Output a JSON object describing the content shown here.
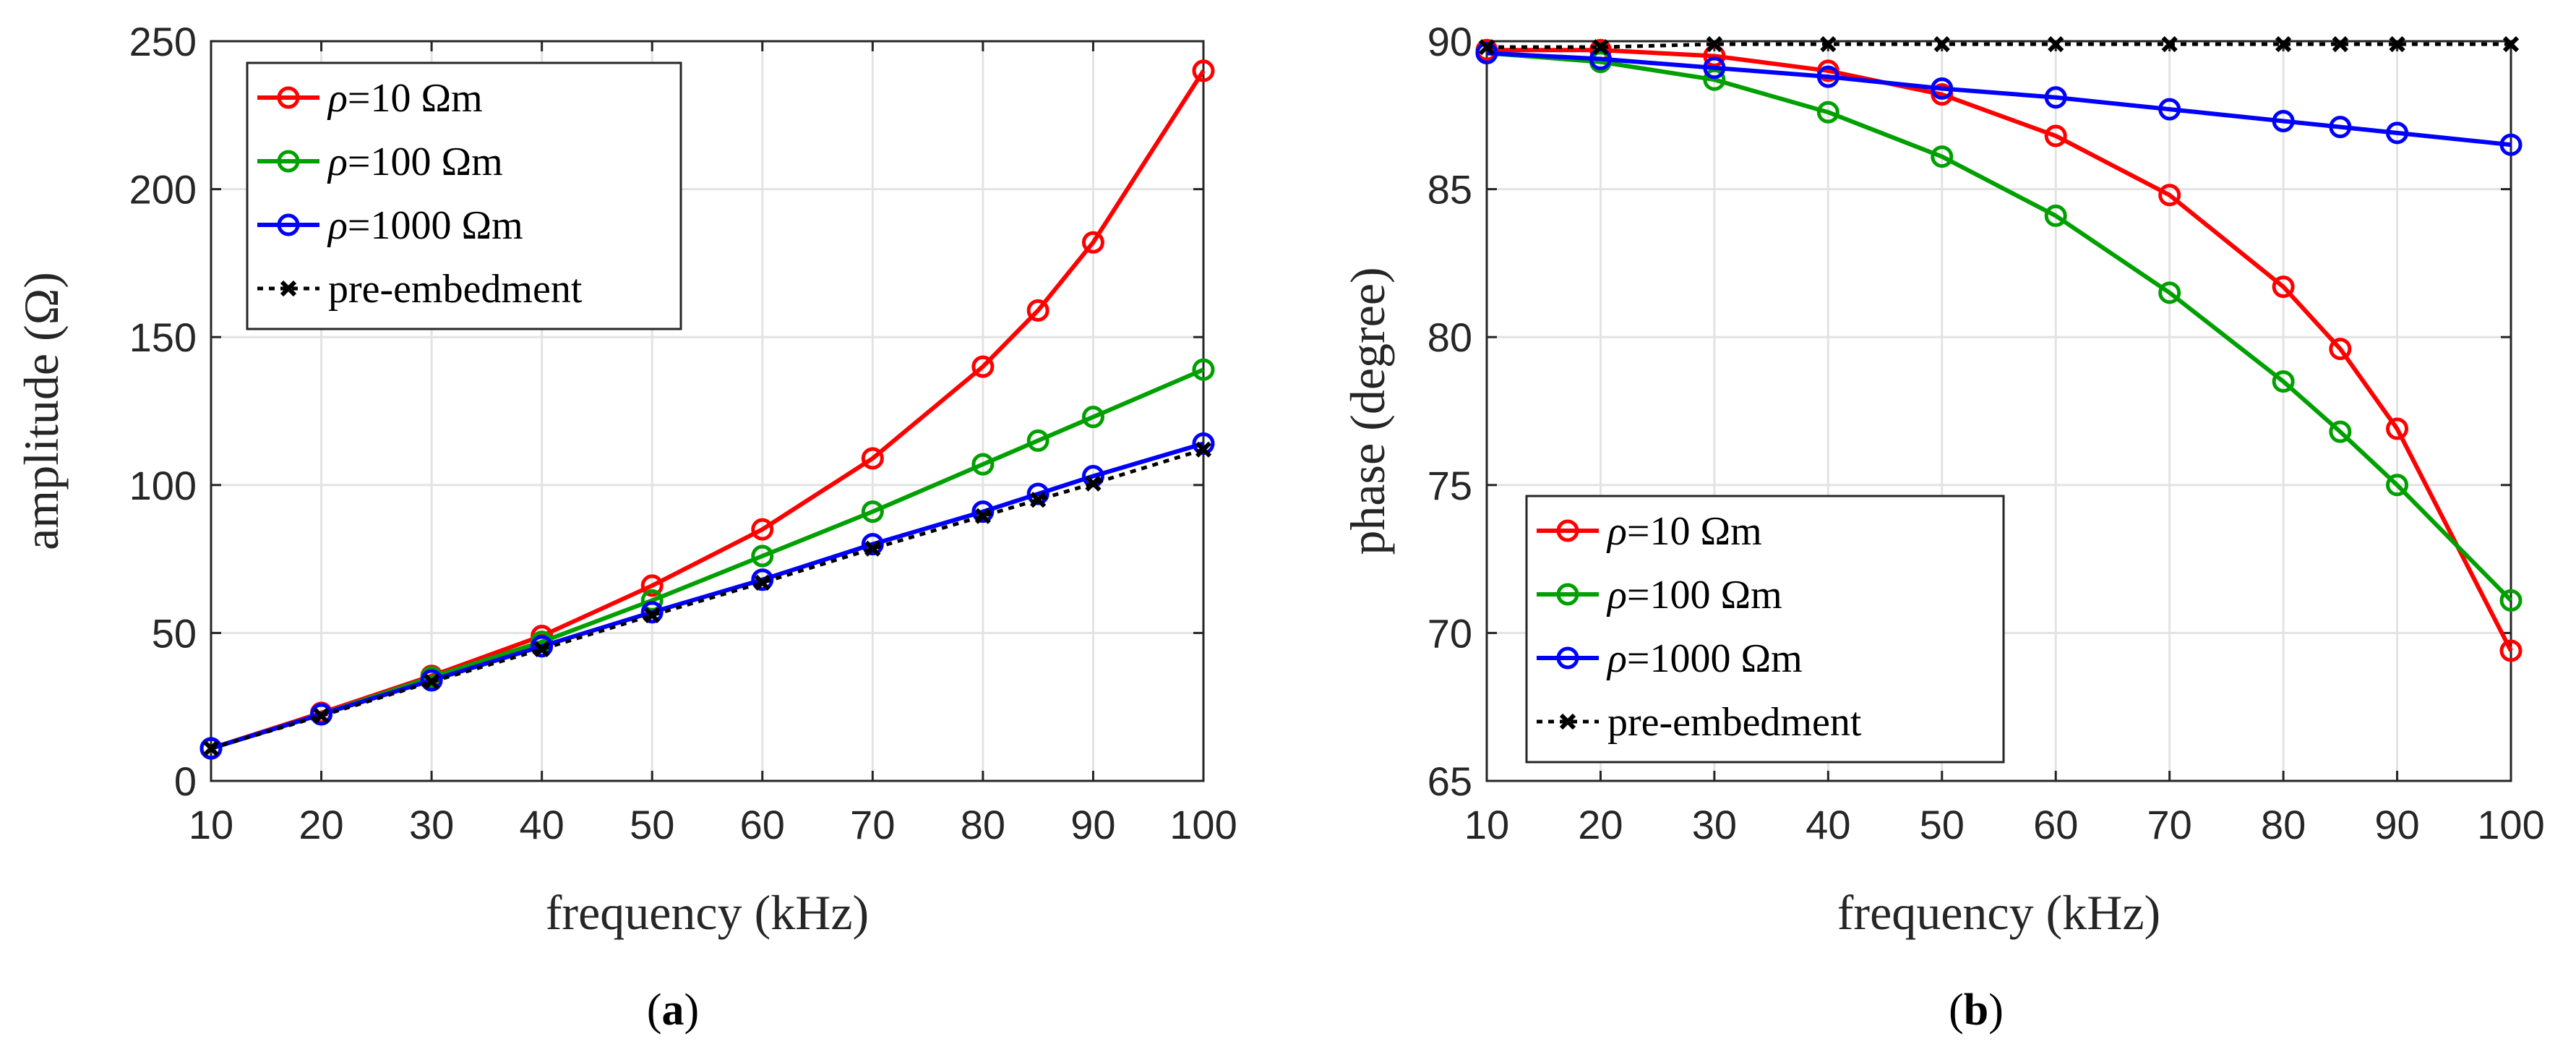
{
  "captions": [
    {
      "open": "(",
      "letter": "a",
      "close": ")"
    },
    {
      "open": "(",
      "letter": "b",
      "close": ")"
    }
  ],
  "chart_data": [
    {
      "type": "line",
      "xlabel": "frequency (kHz)",
      "ylabel": "amplitude (Ω)",
      "xlim": [
        10,
        100
      ],
      "ylim": [
        0,
        250
      ],
      "xticks": [
        10,
        20,
        30,
        40,
        50,
        60,
        70,
        80,
        90,
        100
      ],
      "yticks": [
        0,
        50,
        100,
        150,
        200,
        250
      ],
      "grid": true,
      "legend_position": "top-left",
      "x": [
        10,
        20,
        30,
        40,
        50,
        60,
        70,
        80,
        85,
        90,
        100
      ],
      "series": [
        {
          "name_prefix": "ρ",
          "name_rest": "=10 Ωm",
          "color": "#ff0000",
          "marker": "circle",
          "dash": false,
          "values": [
            11,
            23,
            35.5,
            49,
            66,
            85,
            109,
            140,
            159,
            182,
            240
          ]
        },
        {
          "name_prefix": "ρ",
          "name_rest": "=100 Ωm",
          "color": "#00a000",
          "marker": "circle",
          "dash": false,
          "values": [
            11,
            22.5,
            35,
            47,
            61,
            76,
            91,
            107,
            115,
            123,
            139
          ]
        },
        {
          "name_prefix": "ρ",
          "name_rest": "=1000 Ωm",
          "color": "#0000ff",
          "marker": "circle",
          "dash": false,
          "values": [
            11,
            22.5,
            34,
            45.5,
            57,
            68,
            80,
            91,
            97,
            103,
            114
          ]
        },
        {
          "name_prefix": "",
          "name_rest": "pre-embedment",
          "color": "#000000",
          "marker": "x",
          "dash": true,
          "values": [
            11,
            22,
            33.5,
            44.5,
            56,
            67,
            78.5,
            89.5,
            95,
            100.5,
            112
          ]
        }
      ]
    },
    {
      "type": "line",
      "xlabel": "frequency (kHz)",
      "ylabel": "phase (degree)",
      "xlim": [
        10,
        100
      ],
      "ylim": [
        65,
        90
      ],
      "xticks": [
        10,
        20,
        30,
        40,
        50,
        60,
        70,
        80,
        90,
        100
      ],
      "yticks": [
        65,
        70,
        75,
        80,
        85,
        90
      ],
      "grid": true,
      "legend_position": "bottom-left",
      "x": [
        10,
        20,
        30,
        40,
        50,
        60,
        70,
        80,
        85,
        90,
        100
      ],
      "series": [
        {
          "name_prefix": "ρ",
          "name_rest": "=10 Ωm",
          "color": "#ff0000",
          "marker": "circle",
          "dash": false,
          "values": [
            89.7,
            89.7,
            89.5,
            89.0,
            88.2,
            86.8,
            84.8,
            81.7,
            79.6,
            76.9,
            69.4
          ]
        },
        {
          "name_prefix": "ρ",
          "name_rest": "=100 Ωm",
          "color": "#00a000",
          "marker": "circle",
          "dash": false,
          "values": [
            89.6,
            89.3,
            88.7,
            87.6,
            86.1,
            84.1,
            81.5,
            78.5,
            76.8,
            75.0,
            71.1
          ]
        },
        {
          "name_prefix": "ρ",
          "name_rest": "=1000 Ωm",
          "color": "#0000ff",
          "marker": "circle",
          "dash": false,
          "values": [
            89.6,
            89.4,
            89.1,
            88.8,
            88.4,
            88.1,
            87.7,
            87.3,
            87.1,
            86.9,
            86.5
          ]
        },
        {
          "name_prefix": "",
          "name_rest": "pre-embedment",
          "color": "#000000",
          "marker": "x",
          "dash": true,
          "values": [
            89.8,
            89.8,
            89.9,
            89.9,
            89.9,
            89.9,
            89.9,
            89.9,
            89.9,
            89.9,
            89.9
          ]
        }
      ]
    }
  ]
}
